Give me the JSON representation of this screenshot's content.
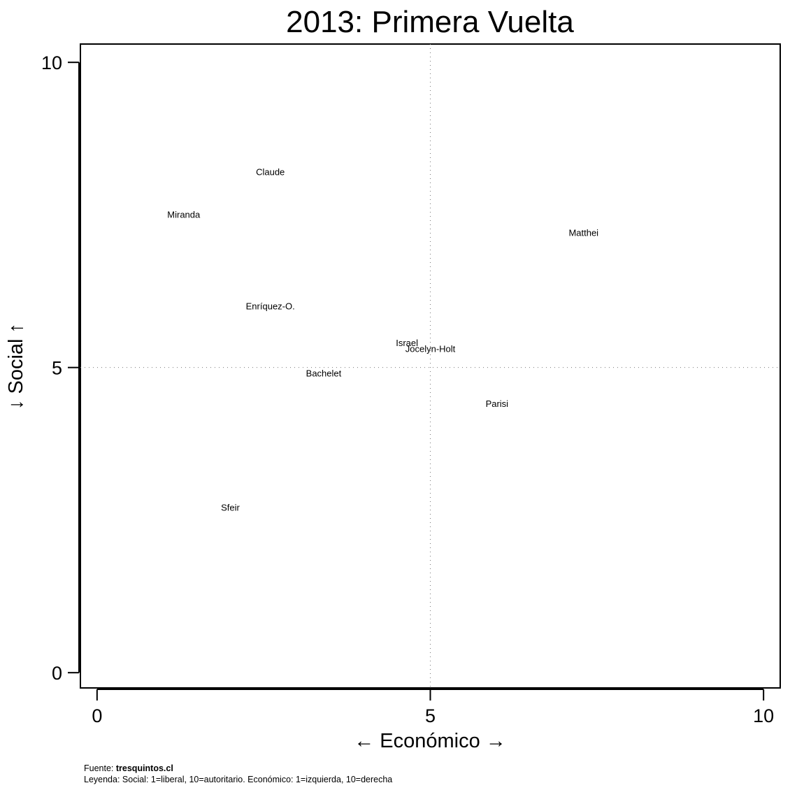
{
  "chart_data": {
    "type": "scatter",
    "title": "2013: Primera Vuelta",
    "xlabel": "← Económico →",
    "ylabel": "↓ Social ↑",
    "xlim": [
      -0.25,
      10.25
    ],
    "ylim": [
      -0.25,
      10.3
    ],
    "xticks": [
      0,
      5,
      10
    ],
    "yticks": [
      0,
      5,
      10
    ],
    "reference_lines": {
      "x": 5,
      "y": 5,
      "style": "dotted"
    },
    "grid": false,
    "points": [
      {
        "label": "Claude",
        "x": 2.6,
        "y": 8.2
      },
      {
        "label": "Miranda",
        "x": 1.3,
        "y": 7.5
      },
      {
        "label": "Matthei",
        "x": 7.3,
        "y": 7.2
      },
      {
        "label": "Enríquez-O.",
        "x": 2.6,
        "y": 6.0
      },
      {
        "label": "Israel",
        "x": 4.65,
        "y": 5.4
      },
      {
        "label": "Jocelyn-Holt",
        "x": 5.0,
        "y": 5.3
      },
      {
        "label": "Bachelet",
        "x": 3.4,
        "y": 4.9
      },
      {
        "label": "Parisi",
        "x": 6.0,
        "y": 4.4
      },
      {
        "label": "Sfeir",
        "x": 2.0,
        "y": 2.7
      }
    ]
  },
  "footer": {
    "source_prefix": "Fuente: ",
    "source_name": "tresquintos.cl",
    "legend": "Leyenda: Social: 1=liberal, 10=autoritario. Económico: 1=izquierda, 10=derecha"
  }
}
